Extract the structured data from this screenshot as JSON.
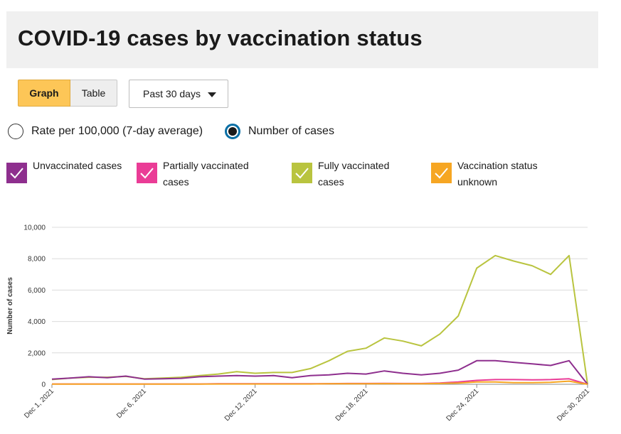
{
  "title": "COVID-19 cases by vaccination status",
  "view_toggle": {
    "graph_label": "Graph",
    "table_label": "Table",
    "selected": "Graph"
  },
  "time_range": {
    "selected": "Past 30 days"
  },
  "measure": {
    "options": [
      {
        "label": "Rate per 100,000 (7-day average)",
        "checked": false
      },
      {
        "label": "Number of cases",
        "checked": true
      }
    ]
  },
  "legend": [
    {
      "label": "Unvaccinated cases",
      "color": "#8e2f8e",
      "checked": true
    },
    {
      "label": "Partially vaccinated cases",
      "color": "#ea3c96",
      "checked": true
    },
    {
      "label": "Fully vaccinated cases",
      "color": "#b9c43f",
      "checked": true
    },
    {
      "label": "Vaccination status unknown",
      "color": "#f6a623",
      "checked": true
    }
  ],
  "chart_data": {
    "type": "line",
    "ylabel": "Number of cases",
    "xlabel": "",
    "ylim": [
      0,
      10000
    ],
    "yticks": [
      0,
      2000,
      4000,
      6000,
      8000,
      10000
    ],
    "ytick_labels": [
      "0",
      "2,000",
      "4,000",
      "6,000",
      "8,000",
      "10,000"
    ],
    "grid": true,
    "x": [
      "Dec 1, 2021",
      "Dec 2, 2021",
      "Dec 3, 2021",
      "Dec 4, 2021",
      "Dec 5, 2021",
      "Dec 6, 2021",
      "Dec 7, 2021",
      "Dec 8, 2021",
      "Dec 9, 2021",
      "Dec 10, 2021",
      "Dec 11, 2021",
      "Dec 12, 2021",
      "Dec 13, 2021",
      "Dec 14, 2021",
      "Dec 15, 2021",
      "Dec 16, 2021",
      "Dec 17, 2021",
      "Dec 18, 2021",
      "Dec 19, 2021",
      "Dec 20, 2021",
      "Dec 21, 2021",
      "Dec 22, 2021",
      "Dec 23, 2021",
      "Dec 24, 2021",
      "Dec 25, 2021",
      "Dec 26, 2021",
      "Dec 27, 2021",
      "Dec 28, 2021",
      "Dec 29, 2021",
      "Dec 30, 2021"
    ],
    "xtick_labels": [
      "Dec 1, 2021",
      "Dec 6, 2021",
      "Dec 12, 2021",
      "Dec 18, 2021",
      "Dec 24, 2021",
      "Dec 30, 2021"
    ],
    "series": [
      {
        "name": "Fully vaccinated cases",
        "color": "#b9c43f",
        "values": [
          300,
          400,
          450,
          450,
          500,
          350,
          400,
          450,
          550,
          650,
          800,
          700,
          750,
          750,
          1000,
          1500,
          2100,
          2300,
          2950,
          2750,
          2450,
          3200,
          4350,
          7400,
          8200,
          7850,
          7550,
          7000,
          8200,
          0
        ]
      },
      {
        "name": "Unvaccinated cases",
        "color": "#8e2f8e",
        "values": [
          330,
          400,
          480,
          420,
          520,
          330,
          350,
          380,
          480,
          520,
          550,
          520,
          550,
          420,
          550,
          600,
          700,
          650,
          850,
          700,
          600,
          700,
          900,
          1500,
          1500,
          1400,
          1300,
          1200,
          1500,
          0
        ]
      },
      {
        "name": "Partially vaccinated cases",
        "color": "#ea3c96",
        "values": [
          20,
          20,
          20,
          20,
          20,
          20,
          20,
          20,
          20,
          30,
          30,
          30,
          30,
          30,
          30,
          40,
          50,
          50,
          60,
          50,
          50,
          80,
          150,
          250,
          300,
          300,
          280,
          300,
          350,
          0
        ]
      },
      {
        "name": "Vaccination status unknown",
        "color": "#f6a623",
        "values": [
          10,
          10,
          10,
          10,
          10,
          10,
          10,
          10,
          10,
          20,
          20,
          20,
          20,
          20,
          20,
          30,
          30,
          30,
          40,
          30,
          30,
          50,
          80,
          150,
          150,
          100,
          100,
          120,
          200,
          0
        ]
      }
    ]
  }
}
